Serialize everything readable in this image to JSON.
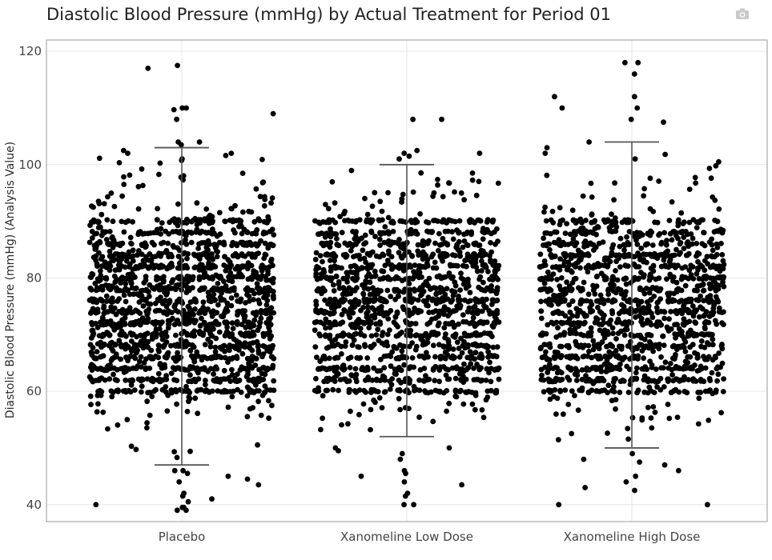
{
  "toolbar": {
    "camera_icon": "camera-icon"
  },
  "chart_data": {
    "type": "scatter",
    "subtype": "jitter-strip-with-range-whiskers",
    "title": "Diastolic Blood Pressure (mmHg) by Actual Treatment for Period 01",
    "xlabel": "",
    "ylabel": "Diastolic Blood Pressure (mmHg) (Analysis Value)",
    "categories": [
      "Placebo",
      "Xanomeline Low Dose",
      "Xanomeline High Dose"
    ],
    "ylim": [
      37,
      122
    ],
    "yticks": [
      40,
      60,
      80,
      100,
      120
    ],
    "grid": true,
    "legend": "none",
    "point_color": "#000000",
    "whisker_color": "#555555",
    "series": [
      {
        "category": "Placebo",
        "whisker": {
          "low": 47,
          "high": 103
        },
        "dense_range": [
          60,
          90
        ],
        "approx_points": 1700,
        "outliers": [
          117,
          117.5,
          110,
          110,
          109.7,
          109,
          108,
          104,
          104,
          103.5,
          102.5,
          102,
          101,
          46,
          46,
          45.5,
          45,
          44.5,
          44,
          43.5,
          42,
          41.5,
          41,
          40.5,
          40,
          39.5,
          39.5,
          39,
          39
        ]
      },
      {
        "category": "Xanomeline Low Dose",
        "whisker": {
          "low": 52,
          "high": 100
        },
        "dense_range": [
          60,
          90
        ],
        "approx_points": 1400,
        "outliers": [
          108,
          108,
          102.5,
          102,
          102,
          101.5,
          101,
          50,
          50,
          49.5,
          49,
          48,
          46,
          45.5,
          45,
          44,
          43.5,
          42,
          41.5,
          40,
          40
        ]
      },
      {
        "category": "Xanomeline High Dose",
        "whisker": {
          "low": 50,
          "high": 104
        },
        "dense_range": [
          60,
          90
        ],
        "approx_points": 1400,
        "outliers": [
          118,
          118,
          116,
          112,
          112,
          110,
          110,
          108,
          107.5,
          104,
          103,
          102,
          101,
          100.5,
          49,
          48,
          47.5,
          47,
          46,
          45,
          44,
          43,
          42.5,
          40,
          40
        ]
      }
    ]
  }
}
